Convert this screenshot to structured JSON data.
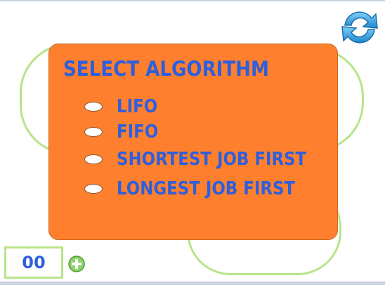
{
  "panel": {
    "title": "SELECT ALGORITHM",
    "options": [
      {
        "label": "LIFO"
      },
      {
        "label": "FIFO"
      },
      {
        "label": "SHORTEST JOB FIRST"
      },
      {
        "label": "LONGEST JOB FIRST"
      }
    ]
  },
  "score": {
    "value": "00"
  },
  "icons": {
    "refresh": "refresh-icon",
    "add": "add-icon"
  },
  "colors": {
    "panel_background": "#fe7f2d",
    "text": "#2e5fdc",
    "ring": "#b8e48a",
    "refresh": "#3aa0e0",
    "add": "#6cc04a"
  }
}
